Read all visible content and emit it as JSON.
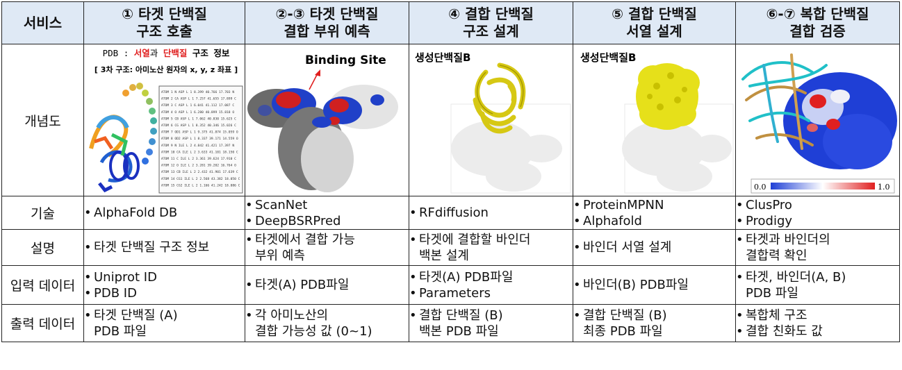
{
  "headers": {
    "service": "서비스",
    "col1": [
      "① 타겟 단백질",
      "구조 호출"
    ],
    "col2": [
      "②-③ 타겟 단백질",
      "결합 부위 예측"
    ],
    "col3": [
      "④ 결합 단백질",
      "구조 설계"
    ],
    "col4": [
      "⑤ 결합 단백질",
      "서열 설계"
    ],
    "col5": [
      "⑥-⑦ 복합 단백질",
      "결합 검증"
    ]
  },
  "rows": {
    "concept": {
      "label": "개념도"
    },
    "tech": {
      "label": "기술"
    },
    "desc": {
      "label": "설명"
    },
    "input": {
      "label": "입력 데이터"
    },
    "output": {
      "label": "출력 데이터"
    }
  },
  "concept": {
    "c1": {
      "pdb_prefix": "PDB : ",
      "pdb_red1": "서열",
      "pdb_mid": "과 ",
      "pdb_red2": "단백질",
      "pdb_tail": " 구조 정보",
      "sub": "[ 3차 구조: 아미노산 원자의 x, y, z 좌표 ]",
      "atoms": [
        "ATOM  1  N   ASP L  1  8.399 40.766 17.703 N",
        "ATOM  2  CA  ASP L  1  7.257 41.655 17.899 C",
        "ATOM  3  C   ASP L  1  6.041 41.112 17.087 C",
        "ATOM  4  O   ASP L  1  6.280 40.899 15.818 O",
        "ATOM  5  CB  ASP L  1  7.062 40.830 15.625 C",
        "ATOM  6  CG  ASP L  1  8.352 40.346 15.026 C",
        "ATOM  7  OD1 ASP L  1  9.375 41.874 15.059 O",
        "ATOM  8  OD2 ASP L  1  8.337 39.171 14.559 O",
        "ATOM  9  N   ILE L  2  4.842 41.421 17.397 N",
        "ATOM 10  CA  ILE L  2  3.633 41.101 18.150 C",
        "ATOM 11  C   ILE L  2  3.361 39.624 17.910 C",
        "ATOM 12  O   ILE L  2  3.281 39.202 16.764 O",
        "ATOM 13  CB  ILE L  2  2.432 41.901 17.639 C",
        "ATOM 14  CG1 ILE L  2  2.568 43.382 18.050 C",
        "ATOM 15  CG2 ILE L  2  1.166 41.242 18.086 C"
      ]
    },
    "c2": {
      "label": "Binding Site"
    },
    "c3": {
      "label": "생성단백질B"
    },
    "c4": {
      "label": "생성단백질B"
    },
    "c5": {
      "scale_min": "0.0",
      "scale_max": "1.0"
    }
  },
  "tech": {
    "c1": [
      "AlphaFold DB"
    ],
    "c2": [
      "ScanNet",
      "DeepBSRPred"
    ],
    "c3": [
      "RFdiffusion"
    ],
    "c4": [
      "ProteinMPNN",
      "Alphafold"
    ],
    "c5": [
      "ClusPro",
      "Prodigy"
    ]
  },
  "desc": {
    "c1": [
      "타겟 단백질 구조 정보"
    ],
    "c2": [
      [
        "타겟에서 결합 가능",
        "부위 예측"
      ]
    ],
    "c3": [
      [
        "타겟에 결합할 바인더",
        "백본 설계"
      ]
    ],
    "c4": [
      "바인더 서열 설계"
    ],
    "c5": [
      [
        "타겟과 바인더의",
        "결합력 확인"
      ]
    ]
  },
  "input": {
    "c1": [
      "Uniprot ID",
      "PDB ID"
    ],
    "c2": [
      "타겟(A) PDB파일"
    ],
    "c3": [
      "타겟(A) PDB파일",
      "Parameters"
    ],
    "c4": [
      "바인더(B) PDB파일"
    ],
    "c5": [
      [
        "타겟, 바인더(A, B)",
        "PDB 파일"
      ]
    ]
  },
  "output": {
    "c1": [
      [
        "타겟 단백질 (A)",
        "PDB 파일"
      ]
    ],
    "c2": [
      [
        "각 아미노산의",
        "결합 가능성 값 (0~1)"
      ]
    ],
    "c3": [
      [
        "결합 단백질 (B)",
        "백본 PDB 파일"
      ]
    ],
    "c4": [
      [
        "결합 단백질 (B)",
        "최종 PDB 파일"
      ]
    ],
    "c5": [
      "복합체 구조",
      "결합 친화도 값"
    ]
  },
  "colors": {
    "header_bg": "#dfe9f5",
    "highlight_red": "#e02020",
    "binder_yellow": "#e6e01a",
    "interface_blue": "#1f3fd6"
  }
}
